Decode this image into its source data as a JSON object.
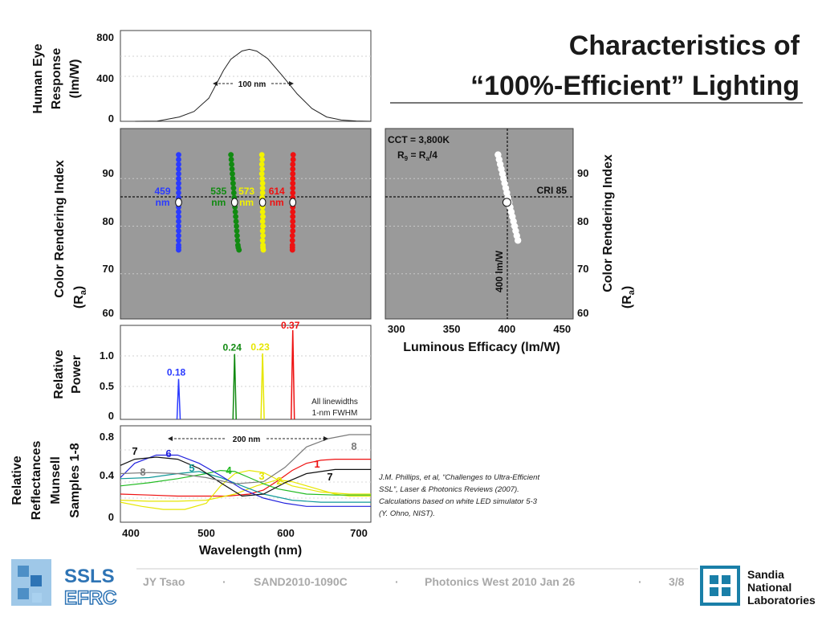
{
  "slide": {
    "title_line1": "Characteristics of",
    "title_line2": "“100%-Efficient” Lighting",
    "footer": {
      "author": "JY Tsao",
      "doc_id": "SAND2010-1090C",
      "event": "Photonics West 2010 Jan 26",
      "page": "3/8",
      "sep": "·"
    },
    "logo_left": {
      "line1": "SSLS",
      "line2": "EFRC"
    },
    "logo_right": {
      "line1": "Sandia",
      "line2": "National",
      "line3": "Laboratories"
    },
    "citation": [
      "J.M. Phillips, et al, “Challenges to Ultra-Efficient",
      "SSL”, Laser & Photonics Reviews (2007).",
      "Calculations based on white LED simulator 5-3",
      "(Y. Ohno, NIST)."
    ],
    "colors": {
      "accent": "#1a1a1a",
      "panel_bg": "#9a9a9a",
      "plot_border": "#404040"
    }
  },
  "chart_data": [
    {
      "type": "line",
      "ylabel_lines": [
        "Human Eye",
        "Response",
        "(lm/W)"
      ],
      "yticks": [
        "800",
        "400",
        "0"
      ],
      "ylim": [
        0,
        800
      ],
      "xlim": [
        380,
        720
      ],
      "annotation": "100 nm",
      "series": [
        {
          "x": [
            400,
            430,
            460,
            480,
            500,
            520,
            530,
            545,
            555,
            565,
            580,
            600,
            620,
            640,
            660,
            680,
            700,
            720
          ],
          "values": [
            0,
            2,
            41,
            94,
            219,
            484,
            589,
            667,
            683,
            666,
            594,
            431,
            260,
            121,
            41,
            12,
            3,
            0
          ]
        }
      ]
    },
    {
      "type": "scatter",
      "ylabel_lines": [
        "Color Rendering Index",
        "(R",
        "a",
        ")"
      ],
      "yticks": [
        "90",
        "80",
        "70",
        "60"
      ],
      "ylim": [
        60,
        100
      ],
      "grid": true,
      "series": [
        {
          "labels": [
            "459",
            "nm"
          ],
          "color": "#2b3bff",
          "x": [
            459,
            459,
            459,
            459,
            459,
            459,
            459,
            459,
            459,
            459,
            459,
            459,
            459,
            459,
            459,
            459,
            459,
            459,
            459,
            459,
            459,
            459
          ],
          "values": [
            95,
            94,
            93,
            92,
            91,
            90,
            89,
            88,
            87,
            86,
            85,
            84,
            83,
            82,
            81,
            80,
            79,
            78,
            77,
            76,
            75.5,
            75
          ]
        },
        {
          "labels": [
            "535",
            "nm"
          ],
          "color": "#118a11",
          "x": [
            530,
            530.5,
            531,
            531.5,
            532,
            532.5,
            533,
            533.5,
            534,
            534.5,
            535,
            535.5,
            536,
            536.5,
            537,
            537.5,
            538,
            538.5,
            539,
            539.5,
            540,
            541
          ],
          "values": [
            95,
            94,
            93,
            92,
            91,
            90,
            89,
            88,
            87,
            86,
            85,
            84,
            83,
            82,
            81,
            80,
            79,
            78,
            77,
            76,
            75.5,
            75
          ]
        },
        {
          "labels": [
            "573",
            "nm"
          ],
          "color": "#f2f200",
          "x": [
            572,
            572.5,
            572,
            572.5,
            572,
            572.5,
            573,
            573,
            573,
            572.5,
            573,
            573,
            573,
            573.5,
            573,
            573.5,
            573,
            573.5,
            573,
            573.5,
            573.5,
            574
          ],
          "values": [
            95,
            94,
            93,
            92,
            91,
            90,
            89,
            88,
            87,
            86,
            85,
            84,
            83,
            82,
            81,
            80,
            79,
            78,
            77,
            76,
            75.5,
            75
          ]
        },
        {
          "labels": [
            "614",
            "nm"
          ],
          "color": "#ee1111",
          "x": [
            614.5,
            614.5,
            614,
            614,
            614,
            614,
            614,
            614,
            614,
            614,
            614,
            614,
            614,
            614,
            614,
            614,
            614,
            613.5,
            613.5,
            613.5,
            613.5,
            613.5
          ],
          "values": [
            95,
            94,
            93,
            92,
            91,
            90,
            89,
            88,
            87,
            86,
            85,
            84,
            83,
            82,
            81,
            80,
            79,
            78,
            77,
            76,
            75.5,
            75
          ]
        }
      ],
      "reference_line": 85
    },
    {
      "type": "scatter",
      "ylabel_lines": [
        "Color Rendering Index",
        "(R",
        "a",
        ")"
      ],
      "yticks": [
        "90",
        "80",
        "70",
        "60"
      ],
      "xlabel": "Luminous Efficacy (lm/W)",
      "xticks": [
        "300",
        "350",
        "400",
        "450"
      ],
      "xlim": [
        290,
        460
      ],
      "ylim": [
        60,
        100
      ],
      "grid": true,
      "legend_lines": [
        "CCT = 3,800K",
        "R",
        "9",
        " = R",
        "a",
        "/4"
      ],
      "cri_label": "CRI 85",
      "vline_label": "400 lm/W",
      "reference_line": 85,
      "reference_x": 400,
      "series": [
        {
          "color": "#ffffff",
          "x": [
            392,
            393,
            394,
            395,
            396,
            397,
            398,
            399,
            400,
            401,
            402,
            403,
            404,
            405,
            406,
            407,
            408,
            409,
            410
          ],
          "values": [
            95,
            94,
            93,
            92,
            91,
            90,
            89,
            88,
            87,
            86,
            85,
            84,
            83,
            82,
            81,
            80,
            79,
            78,
            77
          ]
        }
      ],
      "highlight": {
        "x": 400,
        "y": 85
      }
    },
    {
      "type": "line",
      "ylabel_lines": [
        "Relative",
        "Power"
      ],
      "yticks": [
        "1.0",
        "0.5",
        "0"
      ],
      "ylim": [
        0,
        1.3
      ],
      "note_lines": [
        "All linewidths",
        "1-nm FWHM"
      ],
      "series": [
        {
          "name_value": "0.18",
          "color": "#2b3bff",
          "x": 459,
          "value": 0.6
        },
        {
          "name_value": "0.24",
          "color": "#118a11",
          "x": 535,
          "value": 0.97
        },
        {
          "name_value": "0.23",
          "color": "#e6e600",
          "x": 573,
          "value": 0.98
        },
        {
          "name_value": "0.37",
          "color": "#ee1111",
          "x": 614,
          "value": 1.4
        }
      ]
    },
    {
      "type": "line",
      "ylabel_lines": [
        "Relative",
        "Reflectances",
        "Munsell",
        "Samples 1-8"
      ],
      "yticks": [
        "0.8",
        "0.4",
        "0"
      ],
      "xticks": [
        "400",
        "500",
        "600",
        "700"
      ],
      "xlabel": "Wavelength (nm)",
      "xlim": [
        380,
        730
      ],
      "ylim": [
        0,
        0.8
      ],
      "annotation": "200 nm",
      "series": [
        {
          "label": "1",
          "color": "#ee1111",
          "x": [
            380,
            420,
            460,
            500,
            530,
            560,
            580,
            600,
            620,
            640,
            660,
            680,
            700,
            730
          ],
          "values": [
            0.22,
            0.21,
            0.2,
            0.2,
            0.2,
            0.22,
            0.26,
            0.35,
            0.45,
            0.52,
            0.55,
            0.56,
            0.56,
            0.56
          ]
        },
        {
          "label": "2",
          "color": "#e6e600",
          "x": [
            380,
            410,
            440,
            470,
            500,
            520,
            540,
            560,
            580,
            600,
            620,
            660,
            700,
            730
          ],
          "values": [
            0.14,
            0.1,
            0.07,
            0.07,
            0.13,
            0.3,
            0.42,
            0.45,
            0.43,
            0.36,
            0.3,
            0.24,
            0.22,
            0.22
          ]
        },
        {
          "label": "3",
          "color": "#e6e600",
          "x": [
            380,
            420,
            460,
            500,
            540,
            570,
            600,
            620,
            650,
            680,
            700,
            730
          ],
          "values": [
            0.16,
            0.15,
            0.15,
            0.16,
            0.22,
            0.3,
            0.36,
            0.34,
            0.28,
            0.22,
            0.2,
            0.2
          ]
        },
        {
          "label": "4",
          "color": "#22bb22",
          "x": [
            380,
            420,
            460,
            500,
            520,
            540,
            560,
            580,
            600,
            640,
            680,
            730
          ],
          "values": [
            0.3,
            0.33,
            0.37,
            0.42,
            0.45,
            0.44,
            0.38,
            0.32,
            0.27,
            0.22,
            0.21,
            0.21
          ]
        },
        {
          "label": "5",
          "color": "#119999",
          "x": [
            380,
            420,
            460,
            490,
            520,
            550,
            580,
            620,
            660,
            700,
            730
          ],
          "values": [
            0.37,
            0.38,
            0.42,
            0.44,
            0.38,
            0.3,
            0.22,
            0.16,
            0.14,
            0.14,
            0.14
          ]
        },
        {
          "label": "6",
          "color": "#2222dd",
          "x": [
            380,
            400,
            430,
            460,
            490,
            520,
            550,
            580,
            610,
            640,
            680,
            730
          ],
          "values": [
            0.38,
            0.52,
            0.6,
            0.6,
            0.52,
            0.4,
            0.27,
            0.18,
            0.13,
            0.1,
            0.1,
            0.1
          ]
        },
        {
          "label": "7",
          "color": "#111111",
          "x": [
            380,
            400,
            430,
            460,
            490,
            520,
            550,
            580,
            610,
            640,
            680,
            730
          ],
          "values": [
            0.5,
            0.56,
            0.58,
            0.56,
            0.47,
            0.33,
            0.2,
            0.22,
            0.33,
            0.42,
            0.46,
            0.46
          ]
        },
        {
          "label": "8",
          "color": "#7a7a7a",
          "x": [
            380,
            420,
            460,
            500,
            540,
            580,
            610,
            640,
            670,
            700,
            730
          ],
          "values": [
            0.42,
            0.43,
            0.42,
            0.38,
            0.32,
            0.34,
            0.48,
            0.68,
            0.76,
            0.8,
            0.8
          ]
        }
      ],
      "series_labels": [
        "1",
        "2",
        "3",
        "4",
        "5",
        "6",
        "7",
        "8"
      ]
    }
  ]
}
